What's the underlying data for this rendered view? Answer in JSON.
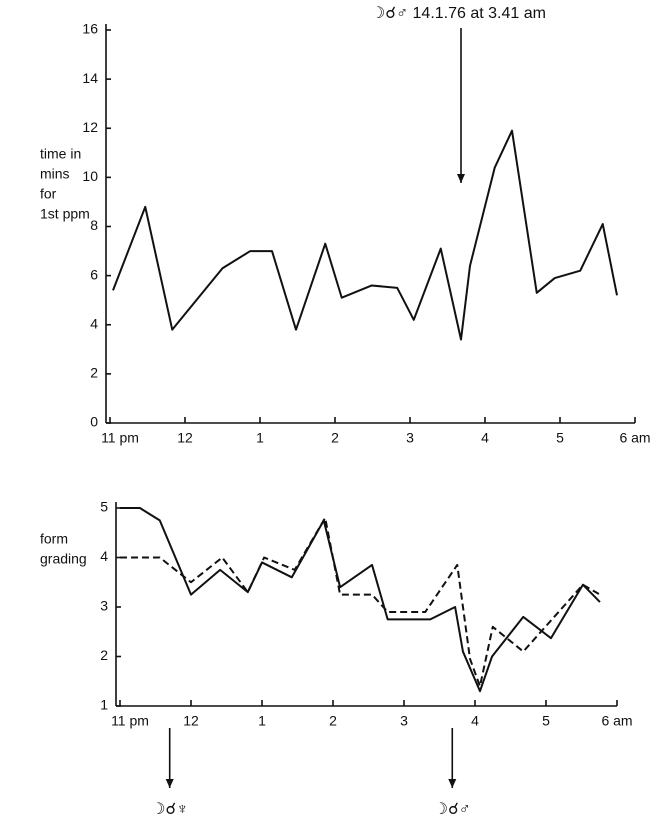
{
  "chart_data": [
    {
      "type": "line",
      "ylabel": [
        "time in",
        "mins",
        "for",
        "1st ppm"
      ],
      "xlim": [
        23,
        30
      ],
      "ylim": [
        0,
        16
      ],
      "xticks": [
        {
          "value": 23,
          "label": "11 pm"
        },
        {
          "value": 24,
          "label": "12"
        },
        {
          "value": 25,
          "label": "1"
        },
        {
          "value": 26,
          "label": "2"
        },
        {
          "value": 27,
          "label": "3"
        },
        {
          "value": 28,
          "label": "4"
        },
        {
          "value": 29,
          "label": "5"
        },
        {
          "value": 30,
          "label": "6 am"
        }
      ],
      "yticks": [
        0,
        2,
        4,
        6,
        8,
        10,
        12,
        14,
        16
      ],
      "annotations": [
        {
          "text": "☽☌♂ 14.1.76 at 3.41 am",
          "x": 27.68
        }
      ],
      "series": [
        {
          "color": "#111111",
          "dash": false,
          "x": [
            23.04,
            23.47,
            23.83,
            24.5,
            24.87,
            25.16,
            25.48,
            25.87,
            26.09,
            26.49,
            26.83,
            27.05,
            27.41,
            27.68,
            27.8,
            28.13,
            28.36,
            28.69,
            28.93,
            29.27,
            29.57,
            29.76
          ],
          "values": [
            5.4,
            8.8,
            3.8,
            6.3,
            7.0,
            7.0,
            3.8,
            7.3,
            5.1,
            5.6,
            5.5,
            4.2,
            7.1,
            3.4,
            6.4,
            10.4,
            11.9,
            5.3,
            5.9,
            6.2,
            8.1,
            5.2
          ]
        }
      ]
    },
    {
      "type": "line",
      "ylabel": [
        "form",
        "grading"
      ],
      "xlim": [
        23,
        30
      ],
      "ylim": [
        1,
        5
      ],
      "xticks": [
        {
          "value": 23,
          "label": "11 pm"
        },
        {
          "value": 24,
          "label": "12"
        },
        {
          "value": 25,
          "label": "1"
        },
        {
          "value": 26,
          "label": "2"
        },
        {
          "value": 27,
          "label": "3"
        },
        {
          "value": 28,
          "label": "4"
        },
        {
          "value": 29,
          "label": "5"
        },
        {
          "value": 30,
          "label": "6 am"
        }
      ],
      "yticks": [
        1,
        2,
        3,
        4,
        5
      ],
      "annotations": [
        {
          "text": "☽☌♆",
          "x": 23.7
        },
        {
          "text": "☽☌♂",
          "x": 27.68
        }
      ],
      "series": [
        {
          "color": "#111111",
          "dash": false,
          "x": [
            23.0,
            23.28,
            23.56,
            24.0,
            24.41,
            24.8,
            25.0,
            25.42,
            25.87,
            26.1,
            26.55,
            26.77,
            27.37,
            27.72,
            27.83,
            28.07,
            28.24,
            28.68,
            29.07,
            29.52,
            29.76
          ],
          "values": [
            5.0,
            5.0,
            4.75,
            3.25,
            3.75,
            3.3,
            3.9,
            3.6,
            4.75,
            3.4,
            3.85,
            2.75,
            2.75,
            3.0,
            2.1,
            1.3,
            2.0,
            2.8,
            2.37,
            3.45,
            3.1
          ]
        },
        {
          "color": "#111111",
          "dash": true,
          "x": [
            23.0,
            23.56,
            24.0,
            24.44,
            24.8,
            25.03,
            25.46,
            25.89,
            26.1,
            26.55,
            26.77,
            27.3,
            27.75,
            27.93,
            28.07,
            28.25,
            28.68,
            29.52,
            29.76
          ],
          "values": [
            4.0,
            4.0,
            3.5,
            4.0,
            3.3,
            4.0,
            3.75,
            4.8,
            3.25,
            3.25,
            2.9,
            2.9,
            3.85,
            1.95,
            1.4,
            2.6,
            2.1,
            3.45,
            3.25
          ]
        }
      ]
    }
  ]
}
